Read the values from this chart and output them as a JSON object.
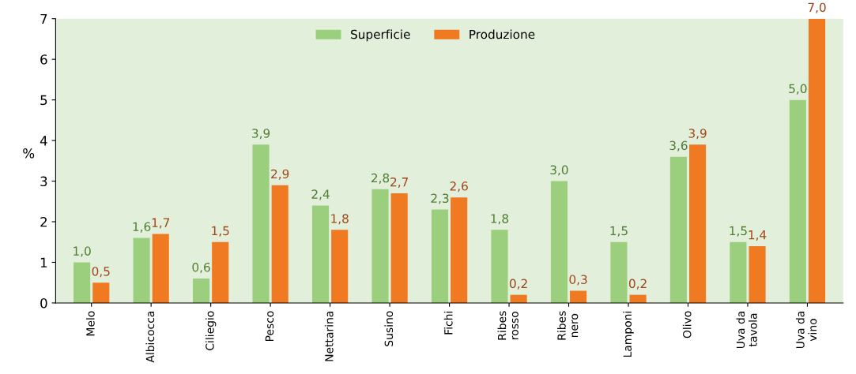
{
  "chart_data": {
    "type": "bar",
    "ylabel": "%",
    "categories": [
      "Melo",
      "Albicocca",
      "Ciliegio",
      "Pesco",
      "Nettarina",
      "Susino",
      "Fichi",
      "Ribes\nrosso",
      "Ribes\nnero",
      "Lamponi",
      "Olivo",
      "Uva da\ntavola",
      "Uva da\nvino"
    ],
    "series": [
      {
        "name": "Superficie",
        "color": "#9bcf7d",
        "values": [
          1.0,
          1.6,
          0.6,
          3.9,
          2.4,
          2.8,
          2.3,
          1.8,
          3.0,
          1.5,
          3.6,
          1.5,
          5.0
        ],
        "value_labels": [
          "1,0",
          "1,6",
          "0,6",
          "3,9",
          "2,4",
          "2,8",
          "2,3",
          "1,8",
          "3,0",
          "1,5",
          "3,6",
          "1,5",
          "5,0"
        ]
      },
      {
        "name": "Produzione",
        "color": "#f07a22",
        "values": [
          0.5,
          1.7,
          1.5,
          2.9,
          1.8,
          2.7,
          2.6,
          0.2,
          0.3,
          0.2,
          3.9,
          1.4,
          7.0
        ],
        "value_labels": [
          "0,5",
          "1,7",
          "1,5",
          "2,9",
          "1,8",
          "2,7",
          "2,6",
          "0,2",
          "0,3",
          "0,2",
          "3,9",
          "1,4",
          "7,0"
        ]
      }
    ],
    "ylim": [
      0,
      7
    ],
    "yticks": [
      0,
      1,
      2,
      3,
      4,
      5,
      6,
      7
    ],
    "grid": false,
    "legend": "top"
  }
}
